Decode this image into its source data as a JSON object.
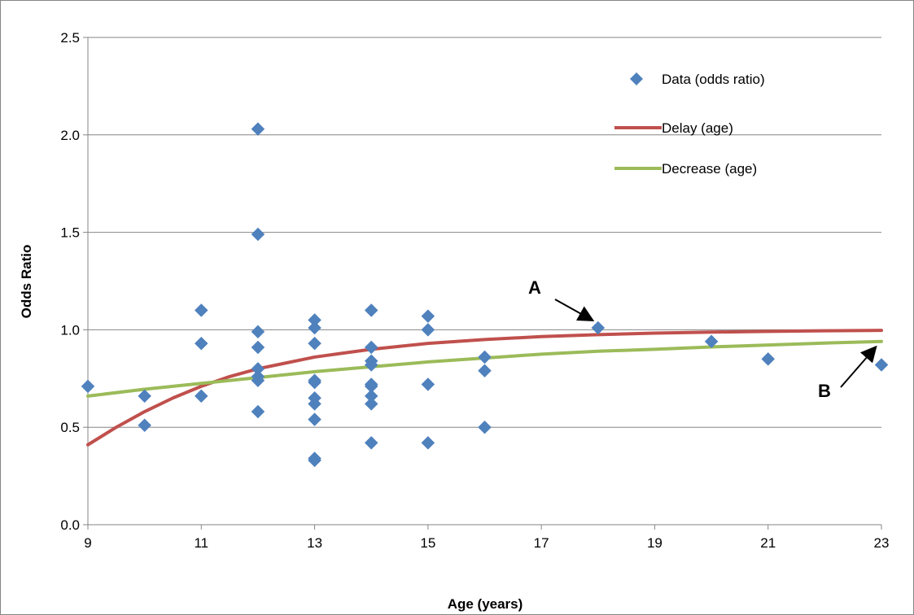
{
  "chart_data": {
    "type": "scatter",
    "xlabel": "Age (years)",
    "ylabel": "Odds Ratio",
    "xlim": [
      9,
      23
    ],
    "ylim": [
      0,
      2.5
    ],
    "x_ticks": [
      9,
      11,
      13,
      15,
      17,
      19,
      21,
      23
    ],
    "y_ticks": [
      "0.0",
      "0.5",
      "1.0",
      "1.5",
      "2.0",
      "2.5"
    ],
    "grid": "horizontal",
    "legend_position": "top-right",
    "series": [
      {
        "name": "Data (odds ratio)",
        "kind": "scatter",
        "marker": "diamond",
        "color": "#4F81BD",
        "points": [
          [
            9,
            0.71
          ],
          [
            10,
            0.66
          ],
          [
            10,
            0.51
          ],
          [
            11,
            1.1
          ],
          [
            11,
            0.93
          ],
          [
            11,
            0.66
          ],
          [
            12,
            2.03
          ],
          [
            12,
            1.49
          ],
          [
            12,
            0.99
          ],
          [
            12,
            0.91
          ],
          [
            12,
            0.8
          ],
          [
            12,
            0.76
          ],
          [
            12,
            0.74
          ],
          [
            12,
            0.58
          ],
          [
            13,
            1.05
          ],
          [
            13,
            1.01
          ],
          [
            13,
            0.93
          ],
          [
            13,
            0.74
          ],
          [
            13,
            0.73
          ],
          [
            13,
            0.65
          ],
          [
            13,
            0.62
          ],
          [
            13,
            0.54
          ],
          [
            13,
            0.34
          ],
          [
            13,
            0.33
          ],
          [
            14,
            1.1
          ],
          [
            14,
            0.91
          ],
          [
            14,
            0.84
          ],
          [
            14,
            0.82
          ],
          [
            14,
            0.72
          ],
          [
            14,
            0.71
          ],
          [
            14,
            0.66
          ],
          [
            14,
            0.62
          ],
          [
            14,
            0.42
          ],
          [
            15,
            1.07
          ],
          [
            15,
            1.0
          ],
          [
            15,
            0.72
          ],
          [
            15,
            0.42
          ],
          [
            16,
            0.86
          ],
          [
            16,
            0.79
          ],
          [
            16,
            0.5
          ],
          [
            18,
            1.01
          ],
          [
            20,
            0.94
          ],
          [
            21,
            0.85
          ],
          [
            23,
            0.82
          ]
        ]
      },
      {
        "name": "Delay (age)",
        "kind": "line",
        "color": "#C0504D",
        "points": [
          [
            9,
            0.41
          ],
          [
            9.5,
            0.5
          ],
          [
            10,
            0.58
          ],
          [
            10.5,
            0.65
          ],
          [
            11,
            0.71
          ],
          [
            11.5,
            0.76
          ],
          [
            12,
            0.8
          ],
          [
            12.5,
            0.83
          ],
          [
            13,
            0.86
          ],
          [
            13.5,
            0.88
          ],
          [
            14,
            0.9
          ],
          [
            14.5,
            0.915
          ],
          [
            15,
            0.93
          ],
          [
            16,
            0.95
          ],
          [
            17,
            0.965
          ],
          [
            18,
            0.975
          ],
          [
            19,
            0.983
          ],
          [
            20,
            0.988
          ],
          [
            21,
            0.992
          ],
          [
            22,
            0.995
          ],
          [
            23,
            0.997
          ]
        ]
      },
      {
        "name": "Decrease (age)",
        "kind": "line",
        "color": "#9BBB59",
        "points": [
          [
            9,
            0.66
          ],
          [
            10,
            0.695
          ],
          [
            11,
            0.725
          ],
          [
            12,
            0.755
          ],
          [
            13,
            0.785
          ],
          [
            14,
            0.81
          ],
          [
            15,
            0.835
          ],
          [
            16,
            0.855
          ],
          [
            17,
            0.875
          ],
          [
            18,
            0.89
          ],
          [
            19,
            0.9
          ],
          [
            20,
            0.912
          ],
          [
            21,
            0.922
          ],
          [
            22,
            0.932
          ],
          [
            23,
            0.94
          ]
        ]
      }
    ],
    "annotations": [
      {
        "label": "A",
        "target": [
          18,
          1.01
        ]
      },
      {
        "label": "B",
        "target": [
          23,
          0.94
        ]
      }
    ]
  }
}
